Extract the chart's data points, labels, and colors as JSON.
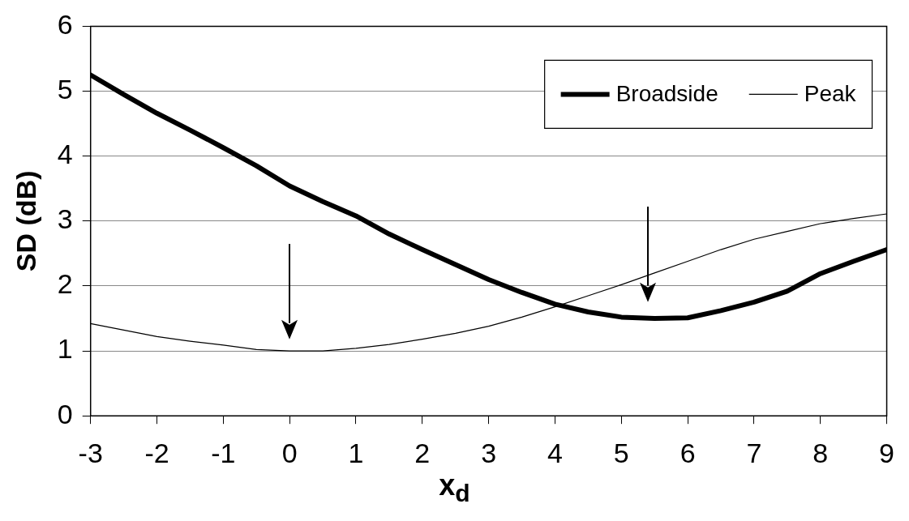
{
  "chart_data": {
    "type": "line",
    "xlabel": "x$_{d}$",
    "ylabel": "SD (dB)",
    "xlim": [
      -3,
      9
    ],
    "xticks": [
      -3,
      -2,
      -1,
      0,
      1,
      2,
      3,
      4,
      5,
      6,
      7,
      8,
      9
    ],
    "ylim": [
      0,
      6
    ],
    "yticks": [
      0,
      1,
      2,
      3,
      4,
      5,
      6
    ],
    "grid": "y",
    "legend": "top right",
    "marker": "none",
    "line_style": "solid",
    "series": [
      {
        "name": "Broadside",
        "color": "#000000",
        "x": [
          -3,
          -2.5,
          -2,
          -1.5,
          -1,
          -0.5,
          0,
          0.5,
          1,
          1.5,
          2,
          2.5,
          3,
          3.5,
          4,
          4.5,
          5,
          5.5,
          6,
          6.5,
          7,
          7.5,
          8,
          8.5,
          9
        ],
        "values": [
          5.25,
          4.95,
          4.66,
          4.4,
          4.13,
          3.85,
          3.54,
          3.3,
          3.08,
          2.8,
          2.56,
          2.33,
          2.1,
          1.9,
          1.72,
          1.6,
          1.52,
          1.5,
          1.51,
          1.62,
          1.75,
          1.92,
          2.19,
          2.38,
          2.56
        ]
      },
      {
        "name": "Peak",
        "color": "#000000",
        "x": [
          -3,
          -2.5,
          -2,
          -1.5,
          -1,
          -0.5,
          0,
          0.5,
          1,
          1.5,
          2,
          2.5,
          3,
          3.5,
          4,
          4.5,
          5,
          5.5,
          6,
          6.5,
          7,
          7.5,
          8,
          8.5,
          9
        ],
        "values": [
          1.42,
          1.32,
          1.22,
          1.15,
          1.09,
          1.02,
          1.0,
          1.0,
          1.04,
          1.1,
          1.18,
          1.27,
          1.38,
          1.52,
          1.68,
          1.85,
          2.02,
          2.2,
          2.38,
          2.56,
          2.72,
          2.84,
          2.96,
          3.04,
          3.11
        ]
      }
    ]
  }
}
